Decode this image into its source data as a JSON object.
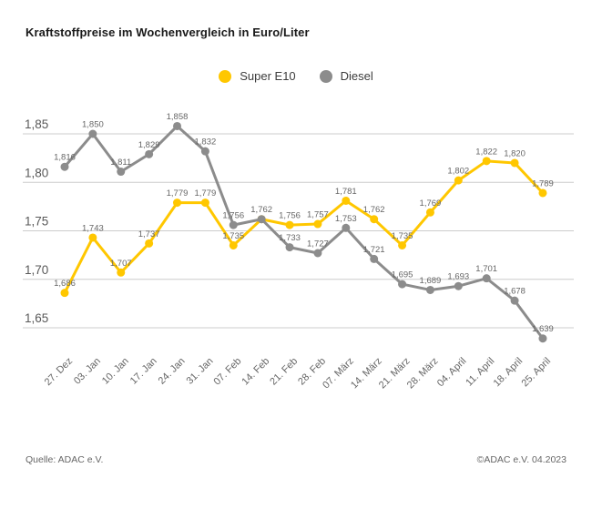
{
  "title": "Kraftstoffpreise im Wochenvergleich in Euro/Liter",
  "chart_data": {
    "type": "line",
    "categories": [
      "27. Dez",
      "03. Jan",
      "10. Jan",
      "17. Jan",
      "24. Jan",
      "31. Jan",
      "07. Feb",
      "14. Feb",
      "21. Feb",
      "28. Feb",
      "07. März",
      "14. März",
      "21. März",
      "28. März",
      "04. April",
      "11. April",
      "18. April",
      "25. April"
    ],
    "series": [
      {
        "name": "Super E10",
        "color": "#FFC700",
        "values": [
          1.686,
          1.743,
          1.707,
          1.737,
          1.779,
          1.779,
          1.735,
          1.762,
          1.756,
          1.757,
          1.781,
          1.762,
          1.735,
          1.769,
          1.802,
          1.822,
          1.82,
          1.789
        ]
      },
      {
        "name": "Diesel",
        "color": "#8C8C8C",
        "values": [
          1.816,
          1.85,
          1.811,
          1.829,
          1.858,
          1.832,
          1.756,
          1.762,
          1.733,
          1.727,
          1.753,
          1.721,
          1.695,
          1.689,
          1.693,
          1.701,
          1.678,
          1.639
        ]
      }
    ],
    "title": "Kraftstoffpreise im Wochenvergleich in Euro/Liter",
    "xlabel": "",
    "ylabel": "",
    "ylim": [
      1.62,
      1.88
    ],
    "yticks": [
      1.85,
      1.8,
      1.75,
      1.7,
      1.65
    ],
    "grid": true,
    "legend_position": "top-center",
    "decimal_separator": ",",
    "data_labels": true
  },
  "colors": {
    "grid_line": "#cccccc",
    "tick_text": "#595959",
    "data_label_text": "#666666",
    "x_label_text": "#666666"
  },
  "footer": {
    "source": "Quelle: ADAC e.V.",
    "copyright": "©ADAC e.V. 04.2023"
  }
}
